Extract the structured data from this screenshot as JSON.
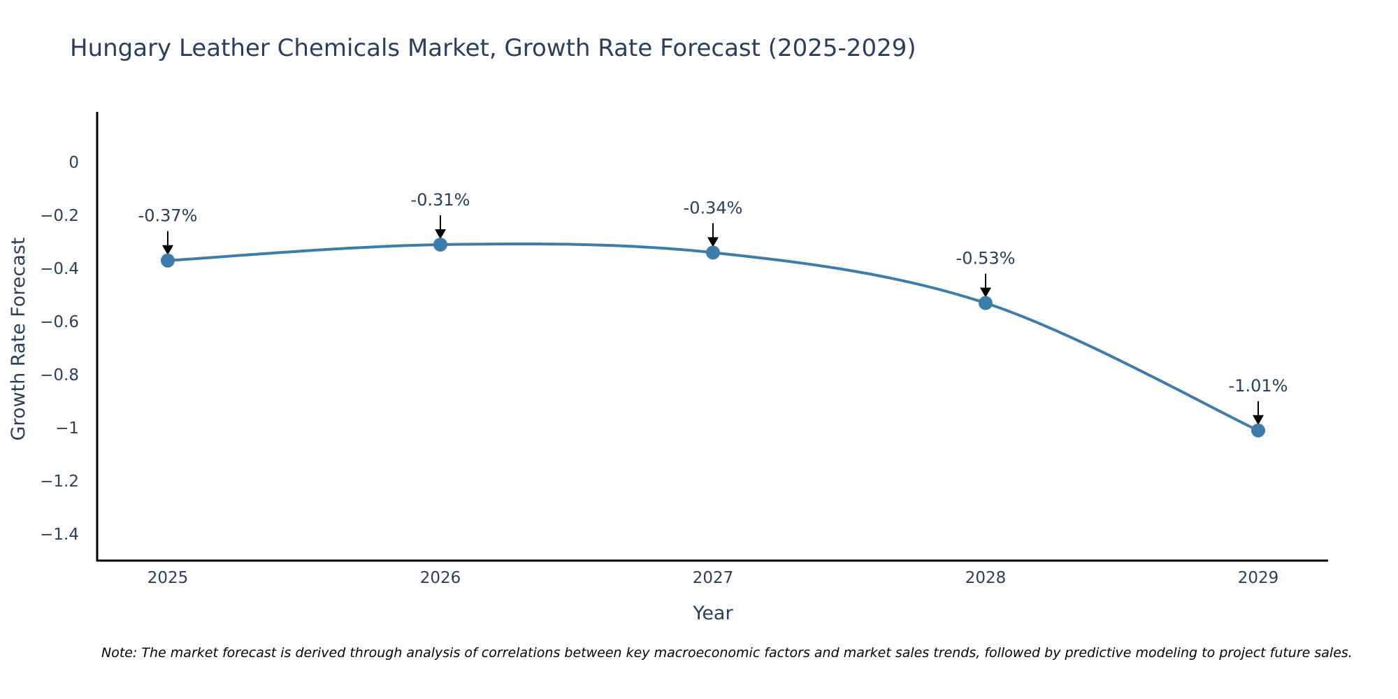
{
  "chart_data": {
    "type": "line",
    "title": "Hungary Leather Chemicals Market, Growth Rate Forecast (2025-2029)",
    "xlabel": "Year",
    "ylabel": "Growth Rate Forecast",
    "categories": [
      "2025",
      "2026",
      "2027",
      "2028",
      "2029"
    ],
    "values": [
      -0.37,
      -0.31,
      -0.34,
      -0.53,
      -1.01
    ],
    "data_labels": [
      "-0.37%",
      "-0.31%",
      "-0.34%",
      "-0.53%",
      "-1.01%"
    ],
    "ylim": [
      -1.5,
      0.19
    ],
    "yticks": [
      0,
      -0.2,
      -0.4,
      -0.6,
      -0.8,
      -1,
      -1.2,
      -1.4
    ],
    "ytick_labels": [
      "0",
      "−0.2",
      "−0.4",
      "−0.6",
      "−0.8",
      "−1",
      "−1.2",
      "−1.4"
    ],
    "grid": false,
    "line_color": "#3d7dab",
    "marker_color": "#3d7dab",
    "note": "Note: The market forecast is derived through analysis of correlations between key macroeconomic factors and market sales trends, followed by predictive modeling to project future sales."
  }
}
